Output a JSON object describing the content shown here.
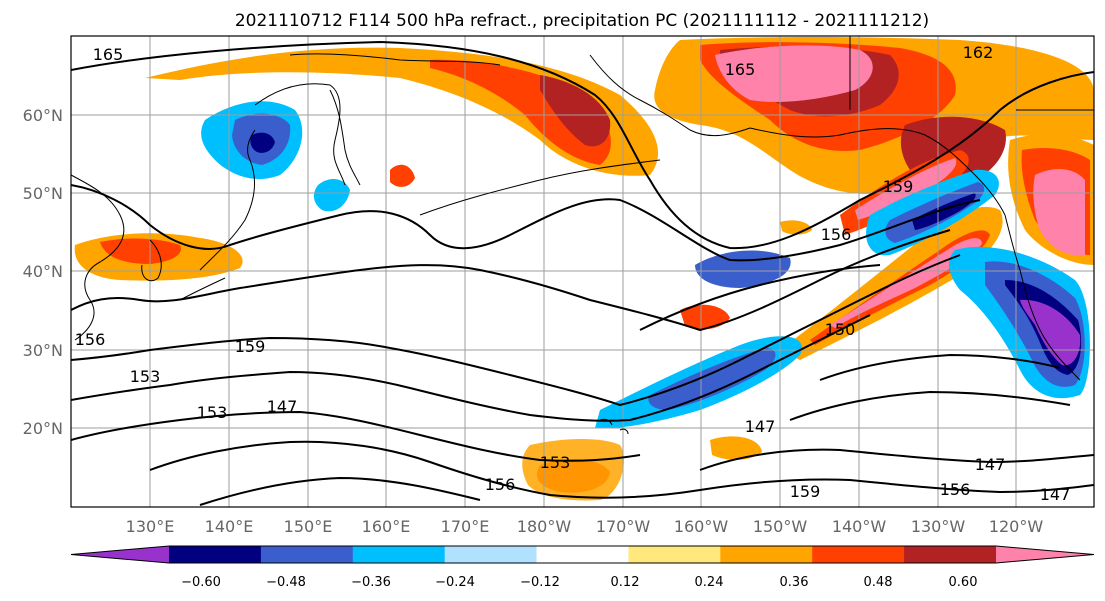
{
  "map": {
    "title": "2021110712 F114 500 hPa refract., precipitation PC (2021111112 - 2021111212)",
    "lat_labels": [
      "60°N",
      "50°N",
      "40°N",
      "30°N",
      "20°N"
    ],
    "lon_labels": [
      "130°E",
      "140°E",
      "150°E",
      "160°E",
      "170°E",
      "180°W",
      "170°W",
      "160°W",
      "150°W",
      "140°W",
      "130°W",
      "120°W"
    ],
    "contour_labels": [
      "165",
      "165",
      "162",
      "159",
      "156",
      "156",
      "159",
      "153",
      "153",
      "147",
      "150",
      "147",
      "153",
      "156",
      "159",
      "147",
      "156",
      "147"
    ]
  },
  "colorbar": {
    "ticks": [
      "−0.60",
      "−0.48",
      "−0.36",
      "−0.24",
      "−0.12",
      "0.12",
      "0.24",
      "0.36",
      "0.48",
      "0.60"
    ],
    "colors": [
      "#9932cc",
      "#000080",
      "#3a5fcd",
      "#00bfff",
      "#b0e2ff",
      "#ffffff",
      "#ffe87c",
      "#ffa500",
      "#ff4000",
      "#b22222",
      "#ff82ab"
    ]
  }
}
